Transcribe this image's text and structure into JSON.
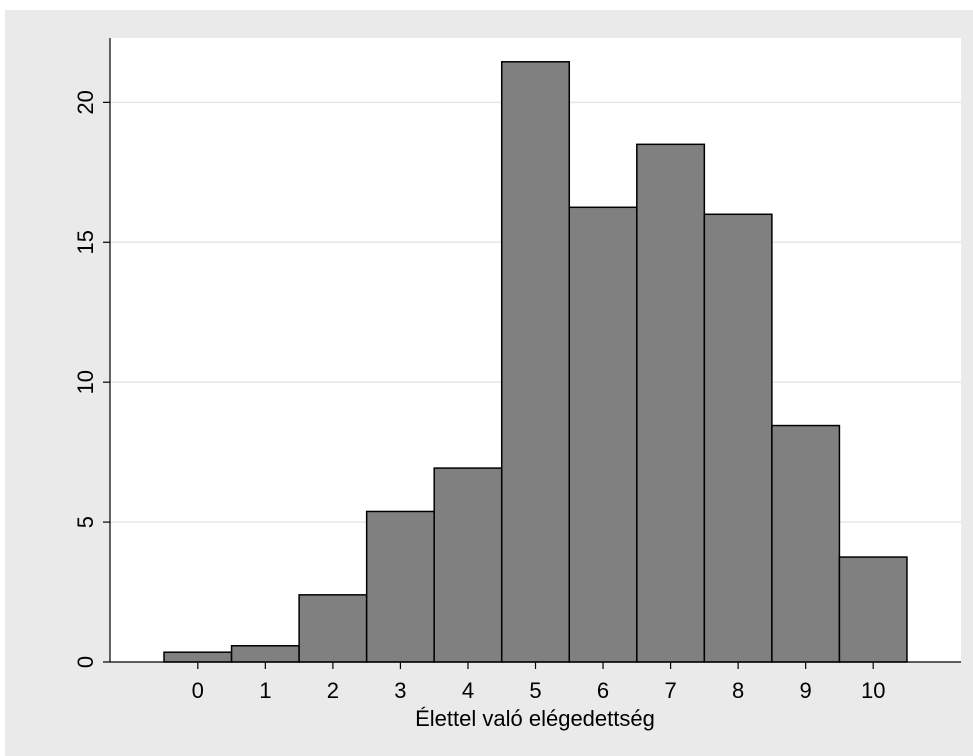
{
  "chart_data": {
    "type": "bar",
    "title": "",
    "xlabel": "Élettel való elégedettség",
    "ylabel": "",
    "categories": [
      "0",
      "1",
      "2",
      "3",
      "4",
      "5",
      "6",
      "7",
      "8",
      "9",
      "10"
    ],
    "values": [
      0.35,
      0.58,
      2.4,
      5.38,
      6.93,
      21.45,
      16.25,
      18.5,
      16.0,
      8.45,
      3.75
    ],
    "yticks": [
      "0",
      "5",
      "10",
      "15",
      "20"
    ],
    "ytick_values": [
      0,
      5,
      10,
      15,
      20
    ],
    "ylim": [
      0,
      22.3
    ],
    "xlim": [
      -1.3,
      11.3
    ],
    "grid": true,
    "colors": {
      "frame_background": "#eaeaea",
      "plot_background": "#ffffff",
      "bar_fill": "#808080",
      "bar_stroke": "#000000",
      "gridline": "#e6e6e6"
    }
  }
}
